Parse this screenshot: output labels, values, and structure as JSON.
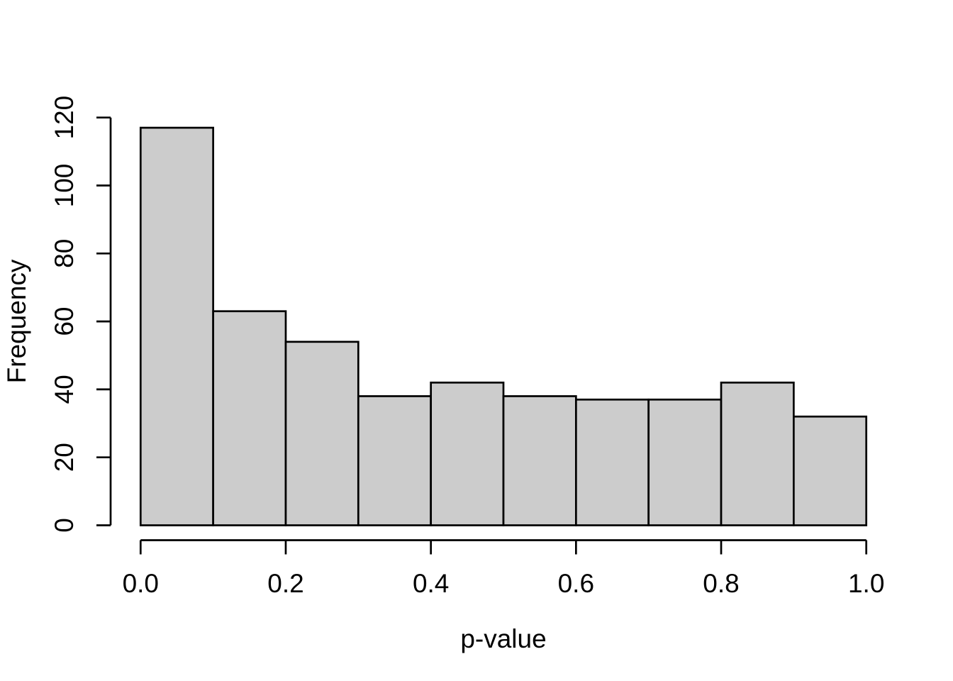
{
  "figure": {
    "background": "#FFFFFF",
    "bar_fill": "#CCCCCC",
    "bar_stroke": "#000000",
    "axis_color": "#000000",
    "text_color": "#000000"
  },
  "chart_data": {
    "type": "bar",
    "subtype": "histogram",
    "title": "",
    "xlabel": "p-value",
    "ylabel": "Frequency",
    "bin_edges": [
      0.0,
      0.1,
      0.2,
      0.3,
      0.4,
      0.5,
      0.6,
      0.7,
      0.8,
      0.9,
      1.0
    ],
    "values": [
      117,
      63,
      54,
      38,
      42,
      38,
      37,
      37,
      42,
      32
    ],
    "total_count": 500,
    "x_ticks": [
      {
        "value": 0.0,
        "label": "0.0"
      },
      {
        "value": 0.2,
        "label": "0.2"
      },
      {
        "value": 0.4,
        "label": "0.4"
      },
      {
        "value": 0.6,
        "label": "0.6"
      },
      {
        "value": 0.8,
        "label": "0.8"
      },
      {
        "value": 1.0,
        "label": "1.0"
      }
    ],
    "y_ticks": [
      {
        "value": 0,
        "label": "0"
      },
      {
        "value": 20,
        "label": "20"
      },
      {
        "value": 40,
        "label": "40"
      },
      {
        "value": 60,
        "label": "60"
      },
      {
        "value": 80,
        "label": "80"
      },
      {
        "value": 100,
        "label": "100"
      },
      {
        "value": 120,
        "label": "120"
      }
    ],
    "xlim": [
      0.0,
      1.0
    ],
    "ylim": [
      0,
      120
    ],
    "grid": false,
    "legend": "none"
  }
}
